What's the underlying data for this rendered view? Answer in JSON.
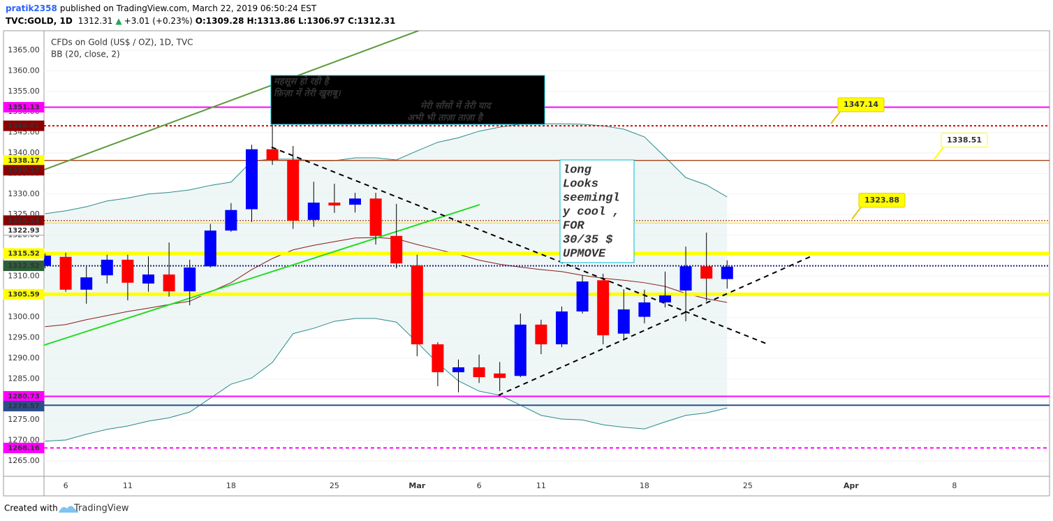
{
  "header": {
    "user": "pratik2358",
    "published": "published on TradingView.com, March 22, 2019 06:50:24 EST",
    "symbol": "TVC:GOLD, 1D",
    "last": "1312.31",
    "arrow": "▲",
    "change": "+3.01 (+0.23%)",
    "o_label": "O:",
    "o": "1309.28",
    "h_label": "H:",
    "h": "1313.86",
    "l_label": "L:",
    "l": "1306.97",
    "c_label": "C:",
    "c": "1312.31"
  },
  "footer": {
    "created": "Created with",
    "brand": "TradingView"
  },
  "chart_data": {
    "type": "candlestick",
    "title": "CFDs on Gold (US$ / OZ), 1D, TVC",
    "up_color": "#0000ff",
    "down_color": "#ff0000",
    "grid": true,
    "categories": [
      null,
      "6",
      null,
      null,
      "11",
      null,
      null,
      null,
      null,
      "18",
      null,
      null,
      null,
      null,
      "25",
      null,
      null,
      null,
      "Mar",
      null,
      null,
      "6",
      null,
      null,
      "11",
      null,
      null,
      null,
      null,
      "18",
      null,
      null,
      null,
      null,
      "25",
      null,
      null,
      null,
      null,
      "Apr",
      null,
      null,
      null,
      null,
      "8",
      null,
      null,
      null,
      null
    ],
    "open": [
      1312.5,
      1314.7,
      1306.7,
      1310.2,
      1314.0,
      1308.2,
      1310.4,
      1306.3,
      1312.4,
      1321.1,
      1326.3,
      1340.9,
      1338.3,
      1323.7,
      1327.9,
      1327.4,
      1328.9,
      1319.8,
      1312.6,
      1293.4,
      1286.6,
      1287.8,
      1286.3,
      1285.7,
      1298.2,
      1293.4,
      1301.4,
      1309.0,
      1296.0,
      1300.1,
      1303.6,
      1306.5,
      1312.4,
      1309.28,
      null,
      null,
      null,
      null,
      null,
      null,
      null,
      null,
      null,
      null,
      null,
      null,
      null,
      null,
      null
    ],
    "high": [
      1315.5,
      1315.7,
      1312.3,
      1315.2,
      1315.2,
      1314.8,
      1318.2,
      1314.0,
      1322.7,
      1327.8,
      1342.0,
      1347.0,
      1341.7,
      1333.0,
      1332.5,
      1330.3,
      1330.3,
      1327.6,
      1315.2,
      1293.9,
      1289.7,
      1290.9,
      1289.1,
      1300.9,
      1299.4,
      1302.6,
      1310.2,
      1310.6,
      1306.8,
      1306.7,
      1311.1,
      1317.2,
      1320.6,
      1313.86,
      null,
      null,
      null,
      null,
      null,
      null,
      null,
      null,
      null,
      null,
      null,
      null,
      null,
      null,
      null
    ],
    "low": [
      1311.9,
      1306.2,
      1303.3,
      1308.2,
      1304.1,
      1306.2,
      1305.0,
      1302.9,
      1312.1,
      1320.8,
      1323.2,
      1337.1,
      1321.5,
      1322.0,
      1325.4,
      1325.5,
      1317.7,
      1311.9,
      1290.5,
      1283.2,
      1281.7,
      1284.0,
      1282.0,
      1285.4,
      1291.0,
      1292.7,
      1300.9,
      1293.4,
      1294.3,
      1298.5,
      1302.4,
      1299.0,
      1303.9,
      1306.97,
      null,
      null,
      null,
      null,
      null,
      null,
      null,
      null,
      null,
      null,
      null,
      null,
      null,
      null,
      null
    ],
    "close": [
      1315.0,
      1306.7,
      1309.7,
      1314.0,
      1308.4,
      1310.4,
      1306.3,
      1312.1,
      1321.1,
      1326.1,
      1340.9,
      1338.3,
      1323.5,
      1327.9,
      1327.2,
      1328.9,
      1319.8,
      1313.1,
      1293.4,
      1286.6,
      1287.8,
      1285.4,
      1285.2,
      1298.2,
      1293.4,
      1301.4,
      1308.7,
      1295.6,
      1301.9,
      1303.6,
      1305.3,
      1312.4,
      1309.4,
      1312.31,
      null,
      null,
      null,
      null,
      null,
      null,
      null,
      null,
      null,
      null,
      null,
      null,
      null,
      null,
      null
    ],
    "bollinger": {
      "name": "BB (20, close, 2)",
      "band_color": "#e8f2f2",
      "band_line_color": "#2a8a8a",
      "basis_color": "#8b1a1a",
      "upper": [
        1325.2,
        1325.9,
        1326.9,
        1328.3,
        1329.0,
        1330.0,
        1330.4,
        1331.0,
        1332.1,
        1332.9,
        1338.0,
        1338.5,
        1338.5,
        1338.1,
        1338.1,
        1338.8,
        1338.8,
        1338.3,
        1340.5,
        1342.6,
        1343.7,
        1345.3,
        1346.3,
        1347.0,
        1347.1,
        1347.1,
        1347.0,
        1346.6,
        1345.8,
        1343.9,
        1339.0,
        1334.0,
        1332.2,
        1329.3,
        null,
        null,
        null,
        null,
        null,
        null,
        null,
        null,
        null,
        null,
        null,
        null,
        null,
        null,
        null
      ],
      "basis": [
        1297.7,
        1298.2,
        1299.4,
        1300.4,
        1301.4,
        1302.2,
        1303.1,
        1303.9,
        1306.2,
        1308.4,
        1311.6,
        1314.3,
        1316.4,
        1317.5,
        1318.4,
        1319.3,
        1319.4,
        1319.1,
        1317.7,
        1316.5,
        1315.3,
        1313.9,
        1312.9,
        1312.2,
        1311.6,
        1311.1,
        1310.2,
        1309.5,
        1309.0,
        1308.4,
        1307.5,
        1305.8,
        1304.5,
        1303.6,
        null,
        null,
        null,
        null,
        null,
        null,
        null,
        null,
        null,
        null,
        null,
        null,
        null,
        null,
        null
      ],
      "lower": [
        1269.8,
        1270.1,
        1271.5,
        1272.7,
        1273.5,
        1274.7,
        1275.5,
        1276.9,
        1280.3,
        1283.7,
        1285.2,
        1289.0,
        1296.0,
        1297.3,
        1299.0,
        1299.7,
        1299.7,
        1298.8,
        1293.9,
        1288.8,
        1284.5,
        1282.0,
        1281.0,
        1278.6,
        1276.1,
        1275.2,
        1275.0,
        1273.8,
        1273.2,
        1272.8,
        1274.5,
        1276.1,
        1276.7,
        1277.9,
        null,
        null,
        null,
        null,
        null,
        null,
        null,
        null,
        null,
        null,
        null,
        null,
        null,
        null,
        null
      ]
    },
    "ylim": [
      1261.26,
      1369.76
    ],
    "yticks": [
      {
        "value": 1265,
        "label": "1265.00"
      },
      {
        "value": 1270,
        "label": "1270.00"
      },
      {
        "value": 1275,
        "label": "1275.00"
      },
      {
        "value": 1280,
        "label": "1280.00"
      },
      {
        "value": 1285,
        "label": "1285.00"
      },
      {
        "value": 1290,
        "label": "1290.00"
      },
      {
        "value": 1295,
        "label": "1295.00"
      },
      {
        "value": 1300,
        "label": "1300.00"
      },
      {
        "value": 1305,
        "label": "1305.00"
      },
      {
        "value": 1310,
        "label": "1310.00"
      },
      {
        "value": 1315,
        "label": "1315.00"
      },
      {
        "value": 1320,
        "label": "1320.00"
      },
      {
        "value": 1325,
        "label": "1325.00"
      },
      {
        "value": 1330,
        "label": "1330.00"
      },
      {
        "value": 1335,
        "label": "1335.00"
      },
      {
        "value": 1340,
        "label": "1340.00"
      },
      {
        "value": 1345,
        "label": "1345.00"
      },
      {
        "value": 1350,
        "label": "1350.00"
      },
      {
        "value": 1355,
        "label": "1355.00"
      },
      {
        "value": 1360,
        "label": "1360.00"
      },
      {
        "value": 1365,
        "label": "1365.00"
      }
    ],
    "hlines": [
      {
        "value": 1351.13,
        "color": "#ff00ff",
        "width": 2,
        "dash": "none",
        "label_bg": "#ff00ff",
        "label_color": "#ffffff"
      },
      {
        "value": 1346.61,
        "color": "#e00000",
        "width": 2,
        "dash": "3,3",
        "label_bg": "#8b0000",
        "label_color": "#ffffff"
      },
      {
        "value": 1338.17,
        "color": "#ffff00",
        "width": 1,
        "dash": "none",
        "label_bg": "#ffff00",
        "label_color": "#000000"
      },
      {
        "value": 1338.17,
        "color": "#8b0000",
        "width": 1,
        "dash": "none",
        "label_bg": "#8b0000",
        "label_color": "#ffffff"
      },
      {
        "value": 1323.53,
        "color": "#8b0000",
        "width": 1,
        "dash": "2,2",
        "label_bg": "#8b0000",
        "label_color": "#ffffff"
      },
      {
        "value": 1322.93,
        "color": "#f5dc00",
        "width": 1,
        "dash": "none",
        "label_bg": "#ffffff",
        "label_color": "#000000"
      },
      {
        "value": 1315.52,
        "color": "#ffff00",
        "width": 5,
        "dash": "none",
        "label_bg": "#ffff00",
        "label_color": "#000000"
      },
      {
        "value": 1312.52,
        "color": "#1a237e",
        "width": 2,
        "dash": "2,2",
        "label_bg": "#2e5d3a",
        "label_color": "#ffffff"
      },
      {
        "value": 1305.59,
        "color": "#ffff00",
        "width": 5,
        "dash": "none",
        "label_bg": "#ffff00",
        "label_color": "#000000"
      },
      {
        "value": 1280.73,
        "color": "#ff00ff",
        "width": 2,
        "dash": "none",
        "label_bg": "#ff00ff",
        "label_color": "#ffffff"
      },
      {
        "value": 1278.57,
        "color": "#2c4f8a",
        "width": 2,
        "dash": "none",
        "label_bg": "#2c4f8a",
        "label_color": "#ffffff"
      },
      {
        "value": 1268.16,
        "color": "#ff00ff",
        "width": 2,
        "dash": "5,4",
        "label_bg": "#ff00ff",
        "label_color": "#ffffff"
      }
    ],
    "trendlines": [
      {
        "color": "#5a9a3a",
        "width": 2,
        "dash": "none",
        "x1": -0.05,
        "y1": 1335.9,
        "x2": 18.09,
        "y2": 1369.8
      },
      {
        "color": "#22dd22",
        "width": 2,
        "dash": "none",
        "x1": -0.05,
        "y1": 1293.2,
        "x2": 21.03,
        "y2": 1327.4
      },
      {
        "color": "#000000",
        "width": 2,
        "dash": "7,6",
        "x1": 10.96,
        "y1": 1341.4,
        "x2": 34.88,
        "y2": 1293.6
      },
      {
        "color": "#000000",
        "width": 2,
        "dash": "7,6",
        "x1": 21.94,
        "y1": 1281.0,
        "x2": 37.01,
        "y2": 1314.7
      }
    ],
    "annotations": [
      {
        "value": 1347.14,
        "fill": "#ffff00",
        "border": "#e6c800",
        "text_color": "#ff0000"
      },
      {
        "value": 1338.51,
        "fill": "#ffffff",
        "border": "#ffff00",
        "text_color": "#9c27b0"
      },
      {
        "value": 1323.88,
        "fill": "#ffff00",
        "border": "#e6c800",
        "text_color": "#000000"
      }
    ],
    "text_boxes": [
      {
        "fill": "#000000",
        "border": "#00bcd4",
        "text_color": "#00e000",
        "lines": [
          "महसूस हो रही है",
          "फ़िज़ा में तेरी खुशबू।",
          "मेरी साँसों में तेरी याद",
          "अभी भी ताज़ा ताज़ा है"
        ]
      },
      {
        "fill": "#ffffff",
        "border": "#00bcd4",
        "text_color": "#ff00ff",
        "lines": [
          "long",
          "Looks",
          "seemingl",
          "y cool ,",
          "FOR",
          "30/35 $",
          "UPMOVE"
        ]
      }
    ]
  }
}
